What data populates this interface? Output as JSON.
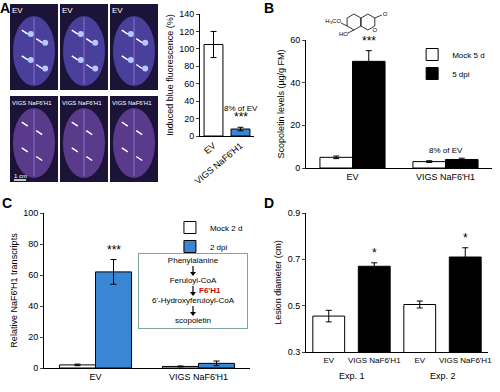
{
  "chart_data": [
    {
      "panel": "A",
      "type": "bar",
      "categories": [
        "EV",
        "VIGS NaF6'H1"
      ],
      "values": [
        105,
        8
      ],
      "errors": [
        15,
        2
      ],
      "colors": [
        "#ffffff",
        "#3a86d4"
      ],
      "ylabel": "Induced blue fluorescence (%)",
      "ylim": [
        0,
        140
      ],
      "yticks": [
        0,
        20,
        40,
        60,
        80,
        100,
        120,
        140
      ],
      "annotations": [
        {
          "text": "***",
          "index": 1
        },
        {
          "text": "8% of EV",
          "index": 1
        }
      ]
    },
    {
      "panel": "B",
      "type": "bar",
      "categories": [
        "EV",
        "VIGS NaF6'H1"
      ],
      "series": [
        {
          "name": "Mock 5 d",
          "color": "#ffffff",
          "values": [
            5,
            3
          ],
          "errors": [
            0.6,
            0.4
          ]
        },
        {
          "name": "5 dpi",
          "color": "#000000",
          "values": [
            50,
            4
          ],
          "errors": [
            5,
            0.6
          ]
        }
      ],
      "ylabel": "Scopoletin levels (µg/g FM)",
      "ylim": [
        0,
        60
      ],
      "yticks": [
        0,
        20,
        40,
        60
      ],
      "legend": "top right",
      "annotations": [
        {
          "text": "***",
          "index": 0,
          "series": "5 dpi"
        },
        {
          "text": "8% of EV",
          "index": 1
        }
      ],
      "structure_labels": [
        "H₃CO",
        "HO",
        "O",
        "O"
      ]
    },
    {
      "panel": "C",
      "type": "bar",
      "categories": [
        "EV",
        "VIGS NaF6'H1"
      ],
      "series": [
        {
          "name": "Mock 2 d",
          "color": "#ffffff",
          "values": [
            2,
            1
          ],
          "errors": [
            0.5,
            0.3
          ]
        },
        {
          "name": "2 dpi",
          "color": "#3a86d4",
          "values": [
            62,
            3
          ],
          "errors": [
            8,
            1.5
          ]
        }
      ],
      "ylabel": "Relative NaF6'H1 transcripts",
      "ylim": [
        0,
        100
      ],
      "yticks": [
        0,
        20,
        40,
        60,
        80,
        100
      ],
      "legend": "top right",
      "annotations": [
        {
          "text": "***",
          "index": 0,
          "series": "2 dpi"
        }
      ],
      "pathway": {
        "steps": [
          "Phenylalanine",
          "Feruloyl-CoA",
          "6'-Hydroxyferuloyl-CoA",
          "scopoletin"
        ],
        "enzyme": "F6'H1",
        "enzyme_step": 1
      }
    },
    {
      "panel": "D",
      "type": "bar",
      "categories": [
        "EV",
        "VIGS NaF6'H1",
        "EV",
        "VIGS NaF6'H1"
      ],
      "values": [
        0.455,
        0.67,
        0.505,
        0.71
      ],
      "errors": [
        0.025,
        0.015,
        0.015,
        0.04
      ],
      "colors": [
        "#ffffff",
        "#000000",
        "#ffffff",
        "#000000"
      ],
      "ylabel": "Lesion diameter (cm)",
      "ylim": [
        0.3,
        0.9
      ],
      "yticks": [
        0.3,
        0.5,
        0.7,
        0.9
      ],
      "annotations": [
        {
          "text": "*",
          "index": 1
        },
        {
          "text": "*",
          "index": 3
        }
      ],
      "groups": [
        {
          "label": "Exp. 1",
          "indices": [
            0,
            1
          ]
        },
        {
          "label": "Exp. 2",
          "indices": [
            2,
            3
          ]
        }
      ]
    }
  ],
  "photos": {
    "panel": "A",
    "row_labels": [
      "EV",
      "VIGS NaF6'H1"
    ],
    "scale_label": "1 cm"
  }
}
